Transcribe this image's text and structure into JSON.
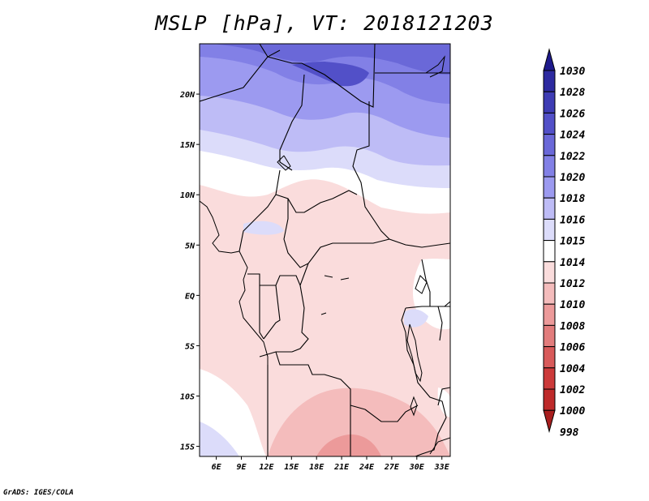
{
  "title": "MSLP [hPa], VT: 2018121203",
  "footer": "GrADS: IGES/COLA",
  "map": {
    "lat_labels": [
      "20N",
      "15N",
      "10N",
      "5N",
      "EQ",
      "5S",
      "10S",
      "15S"
    ],
    "lon_labels": [
      "6E",
      "9E",
      "12E",
      "15E",
      "18E",
      "21E",
      "24E",
      "27E",
      "30E",
      "33E"
    ],
    "lon_range": [
      4,
      34
    ],
    "lat_range": [
      -16,
      25
    ]
  },
  "colorbar": {
    "levels": [
      "1030",
      "1028",
      "1026",
      "1024",
      "1022",
      "1020",
      "1018",
      "1016",
      "1015",
      "1014",
      "1012",
      "1010",
      "1008",
      "1006",
      "1004",
      "1002",
      "1000",
      "998"
    ],
    "colors": [
      "#1e1a8c",
      "#2d2aa0",
      "#3e3cb4",
      "#5250c8",
      "#6a68d8",
      "#8280e6",
      "#9c9af0",
      "#bebcf6",
      "#dcdcfa",
      "#ffffff",
      "#fadcdc",
      "#f4bcbc",
      "#ec9a9a",
      "#e27c7c",
      "#d85a5a",
      "#cc3a3a",
      "#be2a2a",
      "#a81e1e"
    ]
  }
}
